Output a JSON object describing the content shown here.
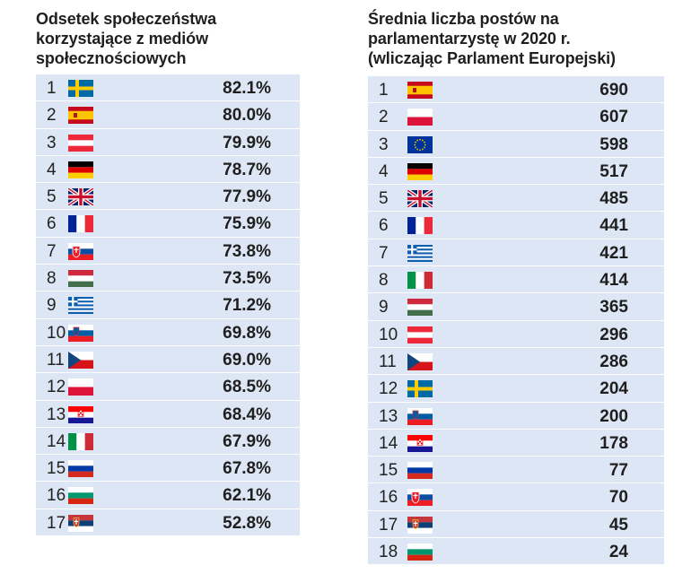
{
  "left": {
    "title_lines": [
      "Odsetek społeczeństwa",
      "korzystające z mediów",
      "społecznościowych"
    ],
    "rows": [
      {
        "rank": "1",
        "flag": "sweden-flag",
        "value": "82.1%"
      },
      {
        "rank": "2",
        "flag": "spain-flag",
        "value": "80.0%"
      },
      {
        "rank": "3",
        "flag": "austria-flag",
        "value": "79.9%"
      },
      {
        "rank": "4",
        "flag": "germany-flag",
        "value": "78.7%"
      },
      {
        "rank": "5",
        "flag": "uk-flag",
        "value": "77.9%"
      },
      {
        "rank": "6",
        "flag": "france-flag",
        "value": "75.9%"
      },
      {
        "rank": "7",
        "flag": "slovakia-flag",
        "value": "73.8%"
      },
      {
        "rank": "8",
        "flag": "hungary-flag",
        "value": "73.5%"
      },
      {
        "rank": "9",
        "flag": "greece-flag",
        "value": "71.2%"
      },
      {
        "rank": "10",
        "flag": "slovenia-flag",
        "value": "69.8%"
      },
      {
        "rank": "11",
        "flag": "czechia-flag",
        "value": "69.0%"
      },
      {
        "rank": "12",
        "flag": "poland-flag",
        "value": "68.5%"
      },
      {
        "rank": "13",
        "flag": "croatia-flag",
        "value": "68.4%"
      },
      {
        "rank": "14",
        "flag": "italy-flag",
        "value": "67.9%"
      },
      {
        "rank": "15",
        "flag": "russia-flag",
        "value": "67.8%"
      },
      {
        "rank": "16",
        "flag": "bulgaria-flag",
        "value": "62.1%"
      },
      {
        "rank": "17",
        "flag": "serbia-flag",
        "value": "52.8%"
      }
    ]
  },
  "right": {
    "title_lines": [
      "Średnia liczba postów na",
      "parlamentarzystę w 2020 r.",
      "(wliczając Parlament Europejski)"
    ],
    "rows": [
      {
        "rank": "1",
        "flag": "spain-flag",
        "value": "690"
      },
      {
        "rank": "2",
        "flag": "poland-flag",
        "value": "607"
      },
      {
        "rank": "3",
        "flag": "eu-flag",
        "value": "598"
      },
      {
        "rank": "4",
        "flag": "germany-flag",
        "value": "517"
      },
      {
        "rank": "5",
        "flag": "uk-flag",
        "value": "485"
      },
      {
        "rank": "6",
        "flag": "france-flag",
        "value": "441"
      },
      {
        "rank": "7",
        "flag": "greece-flag",
        "value": "421"
      },
      {
        "rank": "8",
        "flag": "italy-flag",
        "value": "414"
      },
      {
        "rank": "9",
        "flag": "hungary-flag",
        "value": "365"
      },
      {
        "rank": "10",
        "flag": "austria-flag",
        "value": "296"
      },
      {
        "rank": "11",
        "flag": "czechia-flag",
        "value": "286"
      },
      {
        "rank": "12",
        "flag": "sweden-flag",
        "value": "204"
      },
      {
        "rank": "13",
        "flag": "slovenia-flag",
        "value": "200"
      },
      {
        "rank": "14",
        "flag": "croatia-flag",
        "value": "178"
      },
      {
        "rank": "15",
        "flag": "russia-flag",
        "value": "77"
      },
      {
        "rank": "16",
        "flag": "slovakia-flag",
        "value": "70"
      },
      {
        "rank": "17",
        "flag": "serbia-flag",
        "value": "45"
      },
      {
        "rank": "18",
        "flag": "bulgaria-flag",
        "value": "24"
      }
    ]
  }
}
